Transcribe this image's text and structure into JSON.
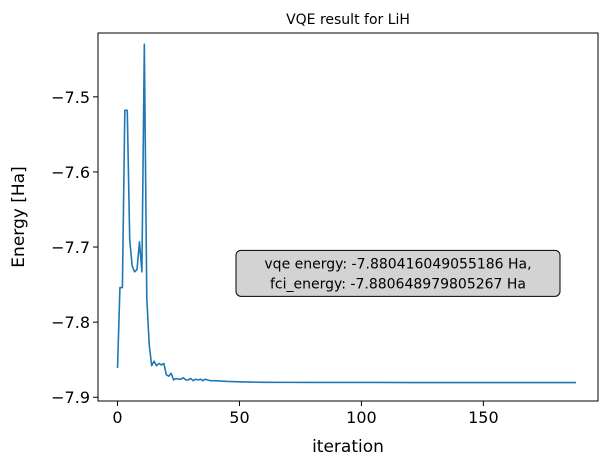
{
  "chart_data": {
    "type": "line",
    "title": "VQE result for LiH",
    "xlabel": "iteration",
    "ylabel": "Energy [Ha]",
    "xlim": [
      -8,
      197
    ],
    "ylim": [
      -7.905,
      -7.415
    ],
    "xticks": [
      0,
      50,
      100,
      150
    ],
    "yticks": [
      -7.9,
      -7.8,
      -7.7,
      -7.6,
      -7.5
    ],
    "ytick_labels": [
      "−7.9",
      "−7.8",
      "−7.7",
      "−7.6",
      "−7.5"
    ],
    "grid": false,
    "line_color": "#1f77b4",
    "annotation": {
      "lines": [
        "vqe energy: -7.880416049055186 Ha,",
        "fci_energy: -7.880648979805267 Ha"
      ],
      "x": 115,
      "y": -7.735,
      "box_color": "#d3d3d3"
    },
    "series": [
      {
        "points": [
          [
            0,
            -7.861
          ],
          [
            1,
            -7.754
          ],
          [
            2,
            -7.754
          ],
          [
            3,
            -7.518
          ],
          [
            4,
            -7.518
          ],
          [
            5,
            -7.69
          ],
          [
            6,
            -7.725
          ],
          [
            7,
            -7.733
          ],
          [
            8,
            -7.73
          ],
          [
            9,
            -7.693
          ],
          [
            10,
            -7.733
          ],
          [
            11,
            -7.43
          ],
          [
            12,
            -7.768
          ],
          [
            13,
            -7.83
          ],
          [
            14,
            -7.858
          ],
          [
            15,
            -7.852
          ],
          [
            16,
            -7.858
          ],
          [
            17,
            -7.855
          ],
          [
            18,
            -7.857
          ],
          [
            19,
            -7.855
          ],
          [
            20,
            -7.87
          ],
          [
            21,
            -7.872
          ],
          [
            22,
            -7.868
          ],
          [
            23,
            -7.877
          ],
          [
            24,
            -7.875
          ],
          [
            25,
            -7.876
          ],
          [
            26,
            -7.876
          ],
          [
            27,
            -7.874
          ],
          [
            28,
            -7.877
          ],
          [
            29,
            -7.877
          ],
          [
            30,
            -7.875
          ],
          [
            31,
            -7.878
          ],
          [
            32,
            -7.876
          ],
          [
            33,
            -7.877
          ],
          [
            34,
            -7.876
          ],
          [
            35,
            -7.878
          ],
          [
            36,
            -7.876
          ],
          [
            38,
            -7.878
          ],
          [
            40,
            -7.878
          ],
          [
            45,
            -7.879
          ],
          [
            50,
            -7.8795
          ],
          [
            55,
            -7.8798
          ],
          [
            60,
            -7.8801
          ],
          [
            70,
            -7.8802
          ],
          [
            80,
            -7.8803
          ],
          [
            100,
            -7.8803
          ],
          [
            120,
            -7.8804
          ],
          [
            140,
            -7.8804
          ],
          [
            160,
            -7.8804
          ],
          [
            180,
            -7.8804
          ],
          [
            188,
            -7.8804
          ]
        ]
      }
    ]
  }
}
